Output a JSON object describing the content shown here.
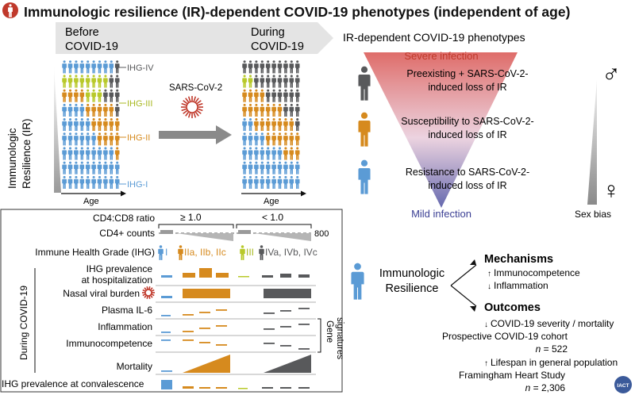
{
  "title": "Immunologic resilience (IR)-dependent COVID-19 phenotypes (independent of age)",
  "timeline": {
    "before": "Before COVID-19",
    "during": "During COVID-19",
    "virus": "SARS-CoV-2",
    "y_axis": "Immunologic Resilience (IR)",
    "x_axis": "Age",
    "groups": [
      {
        "label": "IHG-IV",
        "color": "#58595b"
      },
      {
        "label": "IHG-III",
        "color": "#b8c92a"
      },
      {
        "label": "IHG-II",
        "color": "#d68a1e"
      },
      {
        "label": "IHG-I",
        "color": "#5b9bd5"
      }
    ]
  },
  "phenotypes": {
    "title": "IR-dependent COVID-19 phenotypes",
    "top": "Severe infection",
    "bottom": "Mild infection",
    "items": [
      {
        "line1": "Preexisting + SARS-CoV-2-",
        "line2": "induced loss of IR",
        "color": "#58595b"
      },
      {
        "line1": "Susceptibility to SARS-CoV-2-",
        "line2": "induced loss of IR",
        "color": "#d68a1e"
      },
      {
        "line1": "Resistance to SARS-CoV-2-",
        "line2": "induced loss of IR",
        "color": "#5b9bd5"
      }
    ],
    "sex_bias": "Sex bias",
    "male_symbol": "♂",
    "female_symbol": "♀"
  },
  "panel": {
    "ratio_label": "CD4:CD8 ratio",
    "ratio_high": "≥ 1.0",
    "ratio_low": "< 1.0",
    "cd4_label": "CD4+ counts",
    "cd4_value": "800",
    "ihg_label": "Immune Health Grade (IHG)",
    "ihg_grades": [
      "I",
      "IIa, IIb, IIc",
      "III",
      "IVa, IVb, IVc"
    ],
    "vertical_label": "During COVID-19",
    "gene_label": "Gene signatures",
    "rows": [
      {
        "line1": "IHG prevalence",
        "line2": "at hospitalization"
      },
      {
        "line1": "Nasal viral burden",
        "line2": ""
      },
      {
        "line1": "Plasma IL-6",
        "line2": ""
      },
      {
        "line1": "Inflammation",
        "line2": ""
      },
      {
        "line1": "Immunocompetence",
        "line2": ""
      },
      {
        "line1": "Mortality",
        "line2": ""
      }
    ],
    "footer": "IHG prevalence at convalescence"
  },
  "resilience": {
    "label1": "Immunologic",
    "label2": "Resilience",
    "mechanisms": "Mechanisms",
    "mech1": "Immunocompetence",
    "mech2": "Inflammation",
    "outcomes": "Outcomes",
    "out1": "COVID-19 severity / mortality",
    "out2": "Prospective COVID-19 cohort",
    "n1_prefix": "n",
    "n1": " = 522",
    "out3": "Lifespan in general population",
    "out4": "Framingham Heart Study",
    "n2_prefix": "n",
    "n2": " = 2,306",
    "badge": "IACT"
  },
  "colors": {
    "blue": "#5b9bd5",
    "orange": "#d68a1e",
    "lime": "#b8c92a",
    "gray": "#58595b",
    "red": "#c0392b"
  }
}
